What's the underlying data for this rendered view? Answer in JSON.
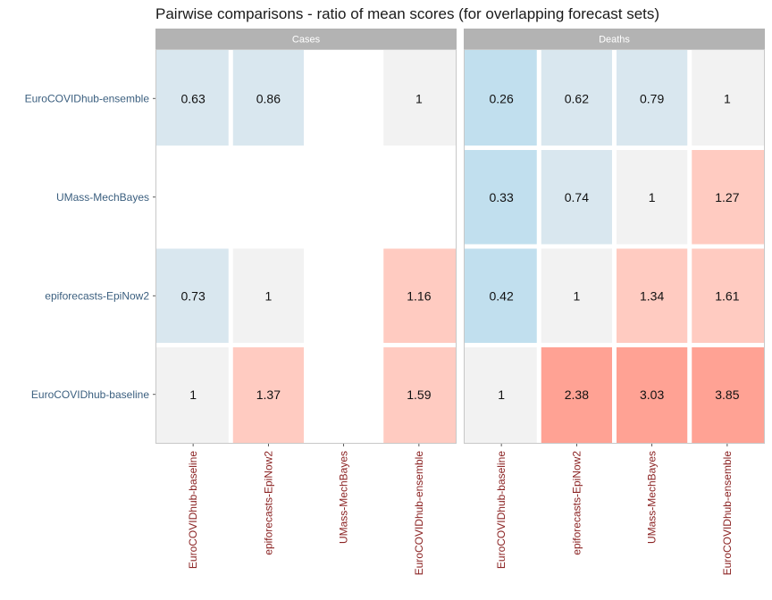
{
  "chart_data": {
    "type": "heatmap",
    "title": "Pairwise comparisons - ratio of mean scores (for overlapping forecast sets)",
    "facets": [
      "Cases",
      "Deaths"
    ],
    "y_categories": [
      "EuroCOVIDhub-ensemble",
      "UMass-MechBayes",
      "epiforecasts-EpiNow2",
      "EuroCOVIDhub-baseline"
    ],
    "x_categories": [
      "EuroCOVIDhub-baseline",
      "epiforecasts-EpiNow2",
      "UMass-MechBayes",
      "EuroCOVIDhub-ensemble"
    ],
    "colors": {
      "strip": "#b3b3b3",
      "panel_border": "#c8c8c8",
      "neutral": "#f2f2f2",
      "blue_light": "#d9e7ef",
      "blue": "#c1dfee",
      "red_light": "#ffcbc1",
      "red": "#ffa294"
    },
    "values": {
      "Cases": [
        [
          0.63,
          0.86,
          null,
          1
        ],
        [
          null,
          null,
          null,
          null
        ],
        [
          0.73,
          1,
          null,
          1.16
        ],
        [
          1,
          1.37,
          null,
          1.59
        ]
      ],
      "Deaths": [
        [
          0.26,
          0.62,
          0.79,
          1
        ],
        [
          0.33,
          0.74,
          1,
          1.27
        ],
        [
          0.42,
          1,
          1.34,
          1.61
        ],
        [
          1,
          2.38,
          3.03,
          3.85
        ]
      ]
    },
    "labels": {
      "Cases": [
        [
          "0.63",
          "0.86",
          "",
          "1"
        ],
        [
          "",
          "",
          "",
          ""
        ],
        [
          "0.73",
          "1",
          "",
          "1.16"
        ],
        [
          "1",
          "1.37",
          "",
          "1.59"
        ]
      ],
      "Deaths": [
        [
          "0.26",
          "0.62",
          "0.79",
          "1"
        ],
        [
          "0.33",
          "0.74",
          "1",
          "1.27"
        ],
        [
          "0.42",
          "1",
          "1.34",
          "1.61"
        ],
        [
          "1",
          "2.38",
          "3.03",
          "3.85"
        ]
      ]
    }
  }
}
